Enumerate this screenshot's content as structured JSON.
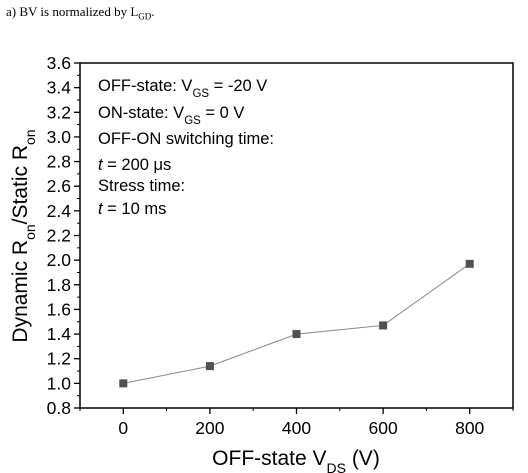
{
  "caption": {
    "prefix": "a) BV is normalized by L",
    "subscript": "GD",
    "suffix": "."
  },
  "chart_data": {
    "type": "line",
    "title": "",
    "xlabel": {
      "main": "OFF-state V",
      "sub": "DS",
      "tail": " (V)"
    },
    "ylabel": {
      "part1": "Dynamic R",
      "sub1": "on",
      "part2": "/Static R",
      "sub2": "on"
    },
    "x_ticks": [
      0,
      200,
      400,
      600,
      800
    ],
    "x_tick_labels": [
      "0",
      "200",
      "400",
      "600",
      "800"
    ],
    "y_ticks": [
      0.8,
      1.0,
      1.2,
      1.4,
      1.6,
      1.8,
      2.0,
      2.2,
      2.4,
      2.6,
      2.8,
      3.0,
      3.2,
      3.4,
      3.6
    ],
    "y_tick_labels": [
      "0.8",
      "1.0",
      "1.2",
      "1.4",
      "1.6",
      "1.8",
      "2.0",
      "2.2",
      "2.4",
      "2.6",
      "2.8",
      "3.0",
      "3.2",
      "3.4",
      "3.6"
    ],
    "xlim": [
      -100,
      900
    ],
    "ylim": [
      0.8,
      3.6
    ],
    "grid": false,
    "series": [
      {
        "x": [
          0,
          200,
          400,
          600,
          800
        ],
        "y": [
          1.0,
          1.14,
          1.4,
          1.47,
          1.97
        ],
        "marker": "square",
        "marker_color": "#505050",
        "line_color": "#8a8a8a"
      }
    ],
    "annotations": {
      "line1": {
        "a": "OFF-state: V",
        "sub": "GS",
        "b": " = -20 V"
      },
      "line2": {
        "a": "ON-state: V",
        "sub": "GS",
        "b": " = 0 V"
      },
      "line3": "OFF-ON switching time:",
      "line4": {
        "var": "t",
        "rest": " = 200 μs"
      },
      "line5": "Stress time:",
      "line6": {
        "var": "t",
        "rest": " = 10 ms"
      }
    }
  }
}
